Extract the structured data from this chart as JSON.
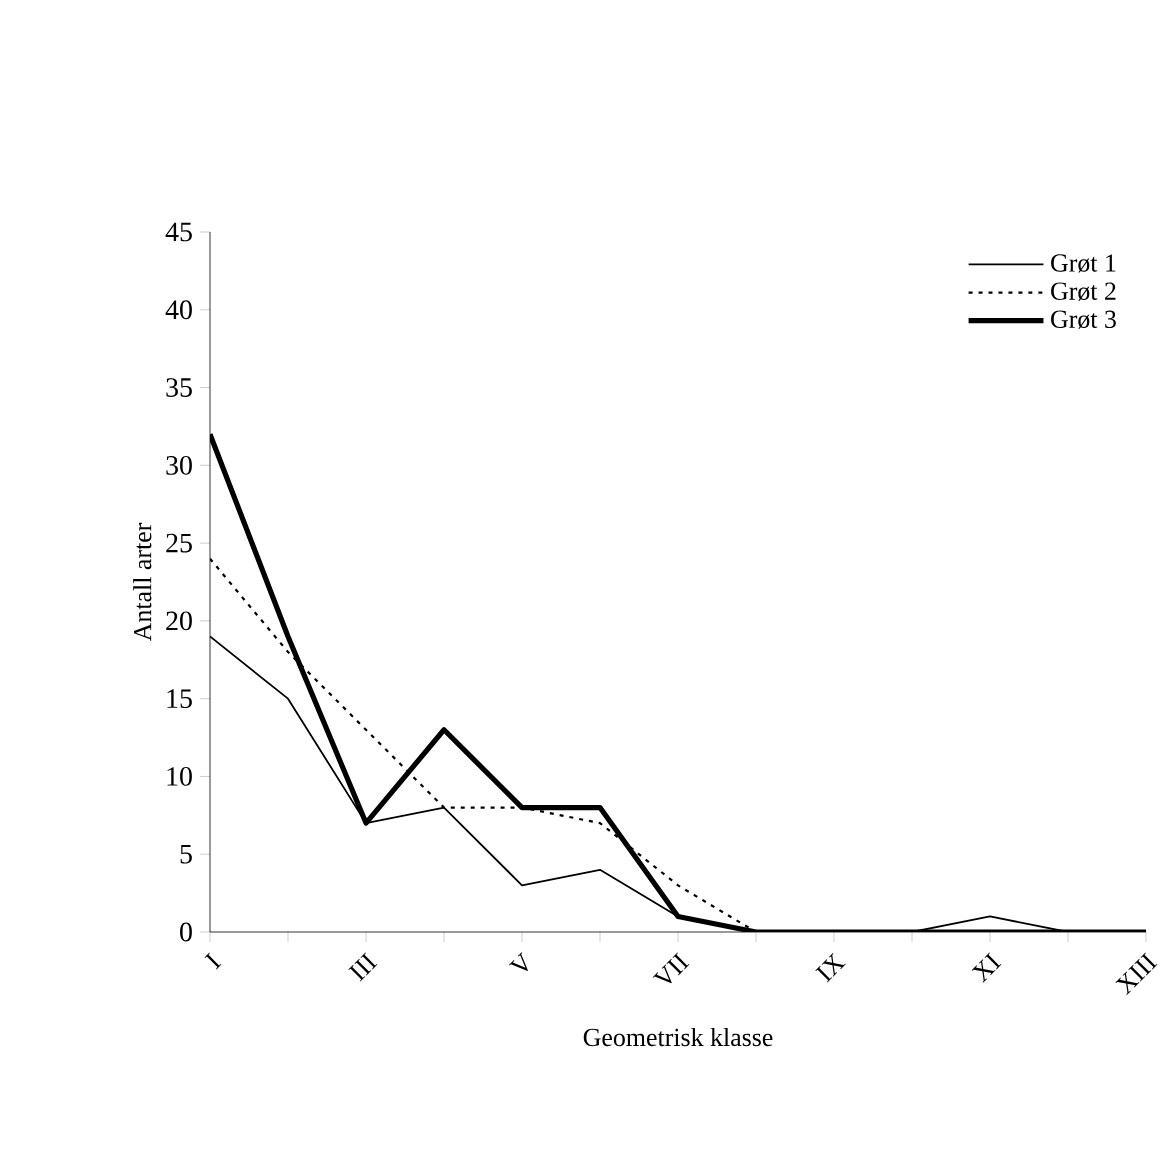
{
  "chart_data": {
    "type": "line",
    "xlabel": "Geometrisk klasse",
    "ylabel": "Antall arter",
    "categories": [
      "I",
      null,
      "III",
      null,
      "V",
      null,
      "VII",
      null,
      "IX",
      null,
      "XI",
      null,
      "XIII"
    ],
    "series": [
      {
        "name": "Grøt 1",
        "color": "#000000",
        "line_style": "solid",
        "values": [
          19,
          15,
          7,
          8,
          3,
          4,
          1,
          0,
          0,
          0,
          1,
          0,
          0
        ]
      },
      {
        "name": "Grøt 2",
        "color": "#000000",
        "line_style": "dotted",
        "values": [
          24,
          18,
          13,
          8,
          8,
          7,
          3,
          0,
          0,
          0,
          0,
          0,
          0
        ]
      },
      {
        "name": "Grøt 3",
        "color": "#000000",
        "line_style": "solid",
        "values": [
          32,
          19,
          7,
          13,
          8,
          8,
          1,
          0,
          0,
          0,
          0,
          0,
          0
        ]
      }
    ],
    "ylim": [
      0,
      45
    ],
    "yticks": [
      0,
      5,
      10,
      15,
      20,
      25,
      30,
      35,
      40,
      45
    ],
    "grid": false,
    "legend": "top right",
    "marker": "none"
  }
}
